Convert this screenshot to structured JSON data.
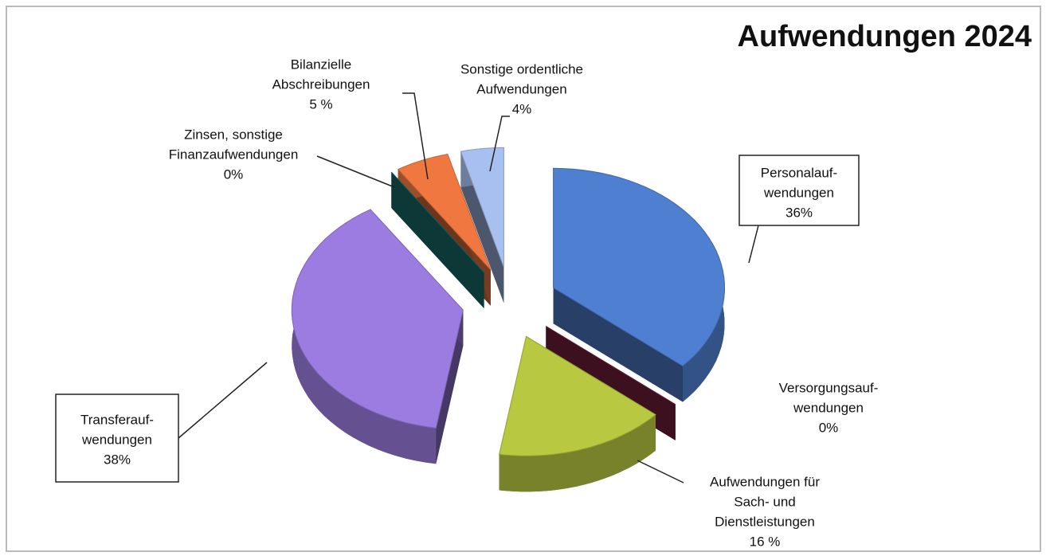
{
  "chart_data": {
    "type": "pie3d",
    "title": "Aufwendungen 2024",
    "categories": [
      [
        "Personalauf-",
        "wendungen"
      ],
      [
        "Versorgungsauf-",
        "wendungen"
      ],
      [
        "Aufwendungen  für",
        "Sach- und",
        "Dienstleistungen"
      ],
      [
        "Transferauf-",
        "wendungen"
      ],
      [
        "Zinsen, sonstige",
        "Finanzaufwendungen"
      ],
      [
        "Bilanzielle",
        "Abschreibungen"
      ],
      [
        "Sonstige ordentliche",
        "Aufwendungen"
      ]
    ],
    "values": [
      36,
      0,
      16,
      38,
      0,
      5,
      4
    ],
    "value_labels": [
      "36%",
      "0%",
      "16 %",
      "38%",
      "0%",
      "5 %",
      "4%"
    ],
    "colors": [
      "#4f7fd0",
      "#7a2040",
      "#b8c840",
      "#9c7ce0",
      "#1a7070",
      "#f07840",
      "#a8c0f0"
    ]
  }
}
